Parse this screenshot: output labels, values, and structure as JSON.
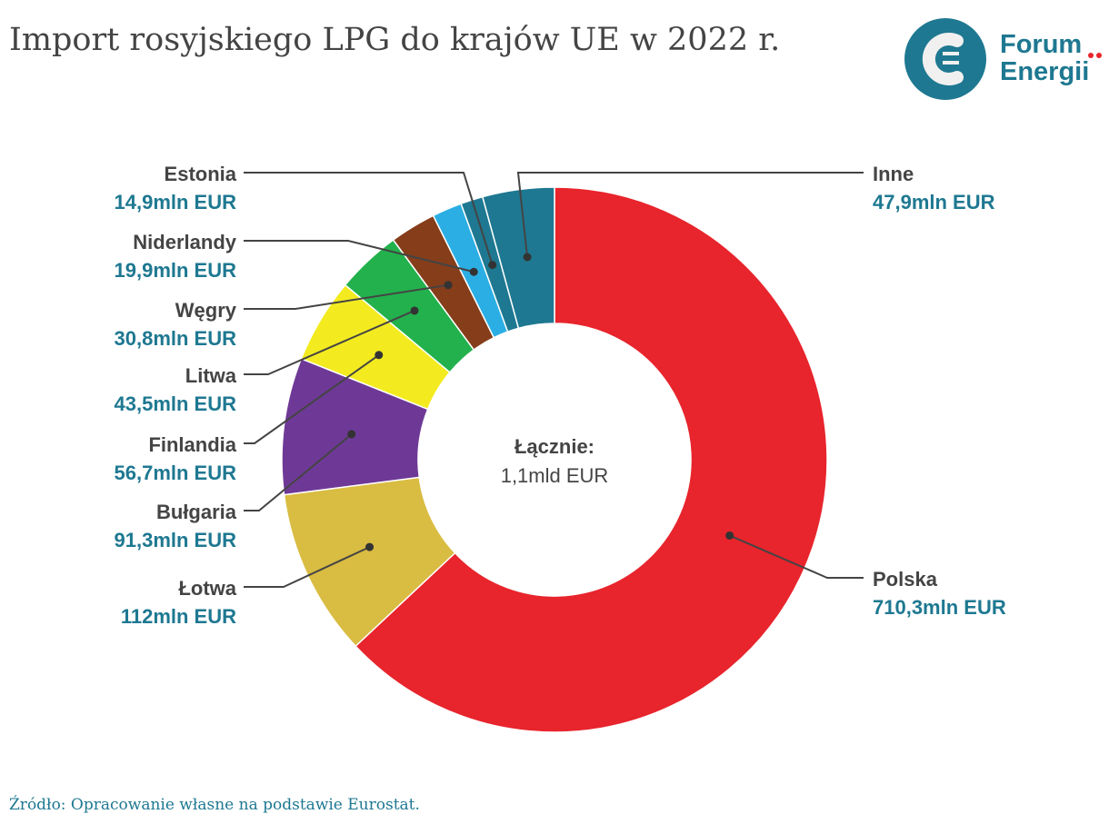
{
  "title": "Import rosyjskiego LPG do krajów UE w 2022 r.",
  "logo": {
    "line1": "Forum",
    "line2": "Energii",
    "color": "#1E7891",
    "dot_color": "#E8242C"
  },
  "center": {
    "label": "Łącznie:",
    "value": "1,1mld EUR"
  },
  "source": "Źródło: Opracowanie własne na podstawie Eurostat.",
  "chart_data": {
    "type": "pie",
    "donut": true,
    "title": "Import rosyjskiego LPG do krajów UE w 2022 r.",
    "unit": "mln EUR",
    "slices": [
      {
        "name": "Polska",
        "value": 710.3,
        "label": "710,3mln EUR",
        "color": "#E8242C"
      },
      {
        "name": "Łotwa",
        "value": 112,
        "label": "112mln EUR",
        "color": "#D9BC42"
      },
      {
        "name": "Bułgaria",
        "value": 91.3,
        "label": "91,3mln EUR",
        "color": "#6E3996"
      },
      {
        "name": "Finlandia",
        "value": 56.7,
        "label": "56,7mln EUR",
        "color": "#F3EB1F"
      },
      {
        "name": "Litwa",
        "value": 43.5,
        "label": "43,5mln EUR",
        "color": "#22B14C"
      },
      {
        "name": "Węgry",
        "value": 30.8,
        "label": "30,8mln EUR",
        "color": "#853D1A"
      },
      {
        "name": "Niderlandy",
        "value": 19.9,
        "label": "19,9mln EUR",
        "color": "#2BAEE4"
      },
      {
        "name": "Estonia",
        "value": 14.9,
        "label": "14,9mln EUR",
        "color": "#1E7891"
      },
      {
        "name": "Inne",
        "value": 47.9,
        "label": "47,9mln EUR",
        "color": "#1E7891"
      }
    ]
  }
}
